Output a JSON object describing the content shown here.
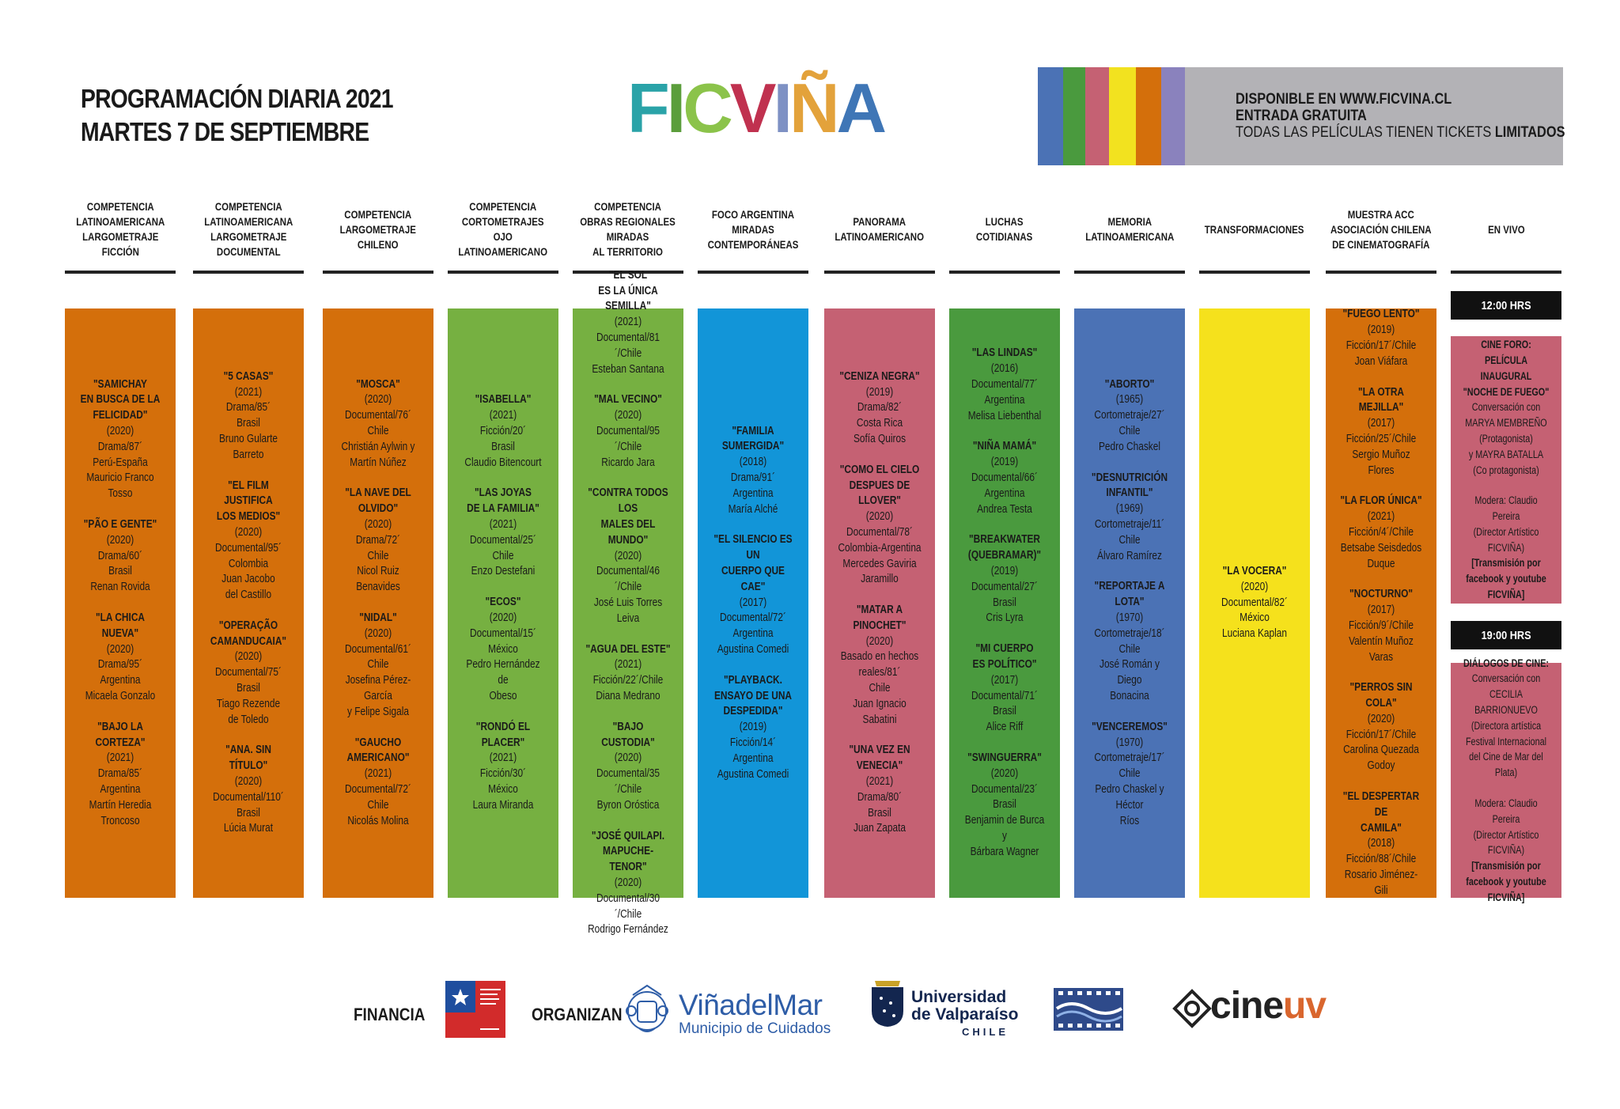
{
  "header": {
    "title": "PROGRAMACIÓN DIARIA 2021",
    "date": "MARTES 7 DE SEPTIEMBRE"
  },
  "logo": {
    "letters": [
      {
        "char": "F",
        "color": "#2aa3a8"
      },
      {
        "char": "I",
        "color": "#5b9e3b"
      },
      {
        "char": "C",
        "color": "#8bc34a"
      },
      {
        "char": "V",
        "color": "#c0314f"
      },
      {
        "char": "I",
        "color": "#7e91c4"
      },
      {
        "char": "Ñ",
        "color": "#e3a23b"
      },
      {
        "char": "A",
        "color": "#3f76b6"
      }
    ]
  },
  "banner": {
    "stripe_colors": [
      "#4b72b5",
      "#4a9a3e",
      "#c56173",
      "#f2e21f",
      "#d46f0b",
      "#8a82bd"
    ],
    "line1": "DISPONIBLE EN WWW.FICVINA.CL",
    "line2": "ENTRADA GRATUITA",
    "line3_prefix": "TODAS LAS PELÍCULAS TIENEN TICKETS ",
    "line3_strong": "LIMITADOS"
  },
  "columns": [
    {
      "header": "COMPETENCIA\nLATINOAMERICANA\nLARGOMETRAJE\nFICCIÓN",
      "color": "#d46f0b",
      "films": [
        {
          "title": "\"SAMICHAY\nEN BUSCA DE LA\nFELICIDAD\"",
          "details": "(2020)\nDrama/87´\nPerú-España\nMauricio Franco\nTosso"
        },
        {
          "title": "\"PÃO E GENTE\"",
          "details": "(2020)\nDrama/60´\nBrasil\nRenan Rovida"
        },
        {
          "title": "\"LA CHICA NUEVA\"",
          "details": "(2020)\nDrama/95´\nArgentina\nMicaela Gonzalo"
        },
        {
          "title": "\"BAJO LA CORTEZA\"",
          "details": "(2021)\nDrama/85´\nArgentina\nMartín Heredia\nTroncoso"
        }
      ]
    },
    {
      "header": "COMPETENCIA\nLATINOAMERICANA\nLARGOMETRAJE\nDOCUMENTAL",
      "color": "#d46f0b",
      "films": [
        {
          "title": "\"5 CASAS\"",
          "details": "(2021)\nDrama/85´\nBrasil\nBruno Gularte Barreto"
        },
        {
          "title": "\"EL FILM JUSTIFICA\nLOS MEDIOS\"",
          "details": "(2020)\nDocumental/95´\nColombia\nJuan Jacobo\ndel Castillo"
        },
        {
          "title": "\"OPERAÇÃO\nCAMANDUCAIA\"",
          "details": "(2020)\nDocumental/75´\nBrasil\nTiago Rezende\nde Toledo"
        },
        {
          "title": "\"ANA. SIN TÍTULO\"",
          "details": "(2020)\nDocumental/110´\nBrasil\nLúcia Murat"
        }
      ]
    },
    {
      "header": "COMPETENCIA\nLARGOMETRAJE\nCHILENO",
      "color": "#d46f0b",
      "films": [
        {
          "title": "\"MOSCA\"",
          "details": "(2020)\nDocumental/76´\nChile\nChristián Aylwin y\nMartín Núñez"
        },
        {
          "title": "\"LA NAVE DEL OLVIDO\"",
          "details": "(2020)\nDrama/72´\nChile\nNicol Ruiz\nBenavides"
        },
        {
          "title": "\"NIDAL\"",
          "details": "(2020)\nDocumental/61´\nChile\nJosefina Pérez-García\ny Felipe Sigala"
        },
        {
          "title": "\"GAUCHO\nAMERICANO\"",
          "details": "(2021)\nDocumental/72´\nChile\nNicolás Molina"
        }
      ]
    },
    {
      "header": "COMPETENCIA\nCORTOMETRAJES\nOJO\nLATINOAMERICANO",
      "color": "#76b041",
      "films": [
        {
          "title": "\"ISABELLA\"",
          "details": "(2021)\nFicción/20´\nBrasil\nClaudio Bitencourt"
        },
        {
          "title": "\"LAS JOYAS\nDE LA FAMILIA\"",
          "details": "(2021)\nDocumental/25´\nChile\nEnzo Destefani"
        },
        {
          "title": "\"ECOS\"",
          "details": "(2020)\nDocumental/15´\nMéxico\nPedro Hernández de\nObeso"
        },
        {
          "title": "\"RONDÓ EL PLACER\"",
          "details": "(2021)\nFicción/30´\nMéxico\nLaura Miranda"
        }
      ]
    },
    {
      "header": "COMPETENCIA\nOBRAS REGIONALES\nMIRADAS\nAL TERRITORIO",
      "color": "#76b041",
      "films": [
        {
          "title": "\"EL SOL\nES LA ÚNICA\nSEMILLA\"",
          "details": "(2021)\nDocumental/81´/Chile\nEsteban Santana"
        },
        {
          "title": "\"MAL VECINO\"",
          "details": "(2020)\nDocumental/95´/Chile\nRicardo Jara"
        },
        {
          "title": "\"CONTRA TODOS LOS\nMALES DEL MUNDO\"",
          "details": "(2020)\nDocumental/46´/Chile\nJosé Luis Torres Leiva"
        },
        {
          "title": "\"AGUA DEL ESTE\"",
          "details": "(2021)\nFicción/22´/Chile\nDiana Medrano"
        },
        {
          "title": "\"BAJO CUSTODIA\"",
          "details": "(2020)\nDocumental/35´/Chile\nByron Oróstica"
        },
        {
          "title": "\"JOSÉ QUILAPI.\nMAPUCHE-TENOR\"",
          "details": "(2020)\nDocumental/30´/Chile\nRodrigo Fernández"
        }
      ]
    },
    {
      "header": "FOCO ARGENTINA\nMIRADAS\nCONTEMPORÁNEAS",
      "color": "#1295d8",
      "films": [
        {
          "title": "\"FAMILIA\nSUMERGIDA\"",
          "details": "(2018)\nDrama/91´\nArgentina\nMaría Alché"
        },
        {
          "title": "\"EL SILENCIO ES UN\nCUERPO QUE CAE\"",
          "details": "(2017)\nDocumental/72´\nArgentina\nAgustina Comedi"
        },
        {
          "title": "\"PLAYBACK.\nENSAYO DE UNA\nDESPEDIDA\"",
          "details": "(2019)\nFicción/14´\nArgentina\nAgustina Comedi"
        }
      ]
    },
    {
      "header": "PANORAMA\nLATINOAMERICANO",
      "color": "#c56173",
      "films": [
        {
          "title": "\"CENIZA NEGRA\"",
          "details": "(2019)\nDrama/82´\nCosta Rica\nSofía Quiros"
        },
        {
          "title": "\"COMO EL CIELO\nDESPUES DE LLOVER\"",
          "details": "(2020)\nDocumental/78´\nColombia-Argentina\nMercedes Gaviria\nJaramillo"
        },
        {
          "title": "\"MATAR A PINOCHET\"",
          "details": "(2020)\nBasado en hechos\nreales/81´\nChile\nJuan Ignacio Sabatini"
        },
        {
          "title": "\"UNA VEZ EN VENECIA\"",
          "details": "(2021)\nDrama/80´\nBrasil\nJuan Zapata"
        }
      ]
    },
    {
      "header": "LUCHAS\nCOTIDIANAS",
      "color": "#4a9a3e",
      "films": [
        {
          "title": "\"LAS LINDAS\"",
          "details": "(2016)\nDocumental/77´\nArgentina\nMelisa Liebenthal"
        },
        {
          "title": "\"NIÑA MAMÁ\"",
          "details": "(2019)\nDocumental/66´\nArgentina\nAndrea Testa"
        },
        {
          "title": "\"BREAKWATER\n(QUEBRAMAR)\"",
          "details": "(2019)\nDocumental/27´\nBrasil\nCris Lyra"
        },
        {
          "title": "\"MI CUERPO\nES POLÍTICO\"",
          "details": "(2017)\nDocumental/71´\nBrasil\nAlice Riff"
        },
        {
          "title": "\"SWINGUERRA\"",
          "details": "(2020)\nDocumental/23´\nBrasil\nBenjamin de Burca y\nBárbara Wagner"
        }
      ]
    },
    {
      "header": "MEMORIA\nLATINOAMERICANA",
      "color": "#4b72b5",
      "films": [
        {
          "title": "\"ABORTO\"",
          "details": "(1965)\nCortometraje/27´\nChile\nPedro Chaskel"
        },
        {
          "title": "\"DESNUTRICIÓN\nINFANTIL\"",
          "details": "(1969)\nCortometraje/11´\nChile\nÁlvaro Ramírez"
        },
        {
          "title": "\"REPORTAJE A LOTA\"",
          "details": "(1970)\nCortometraje/18´\nChile\nJosé Román y Diego\nBonacina"
        },
        {
          "title": "\"VENCEREMOS\"",
          "details": "(1970)\nCortometraje/17´\nChile\nPedro Chaskel y Héctor\nRíos"
        }
      ]
    },
    {
      "header": "TRANSFORMACIONES",
      "color": "#f5e11c",
      "films": [
        {
          "title": "\"LA VOCERA\"",
          "details": "(2020)\nDocumental/82´\nMéxico\nLuciana Kaplan"
        }
      ]
    },
    {
      "header": "MUESTRA ACC\nASOCIACIÓN CHILENA\nDE CINEMATOGRAFÍA",
      "color": "#d46f0b",
      "films": [
        {
          "title": "\"FUEGO LENTO\"",
          "details": "(2019)\nFicción/17´/Chile\nJoan Viáfara"
        },
        {
          "title": "\"LA OTRA MEJILLA\"",
          "details": "(2017)\nFicción/25´/Chile\nSergio Muñoz Flores"
        },
        {
          "title": "\"LA FLOR ÚNICA\"",
          "details": "(2021)\nFicción/4´/Chile\nBetsabe Seisdedos\nDuque"
        },
        {
          "title": "\"NOCTURNO\"",
          "details": "(2017)\nFicción/9´/Chile\nValentín Muñoz Varas"
        },
        {
          "title": "\"PERROS SIN COLA\"",
          "details": "(2020)\nFicción/17´/Chile\nCarolina Quezada\nGodoy"
        },
        {
          "title": "\"EL DESPERTAR DE\nCAMILA\"",
          "details": "(2018)\nFicción/88´/Chile\nRosario Jiménez-Gili"
        }
      ]
    }
  ],
  "en_vivo": {
    "header": "EN VIVO",
    "color": "#c56173",
    "sessions": [
      {
        "time": "12:00 HRS",
        "title": "CINE FORO: PELÍCULA\nINAUGURAL\n\"NOCHE DE FUEGO\"",
        "body": "Conversación con\nMARYA MEMBREÑO\n(Protagonista)\ny MAYRA BATALLA\n(Co protagonista)",
        "moderator": "Modera: Claudio Pereira\n(Director Artístico\nFICVIÑA)",
        "stream": "[Transmisión por\nfacebook y youtube\nFICVIÑA]"
      },
      {
        "time": "19:00 HRS",
        "title": "DIÁLOGOS DE CINE:",
        "body": "Conversación con\nCECILIA BARRIONUEVO\n(Directora artística\nFestival Internacional\ndel Cine de Mar del\nPlata)",
        "moderator": "Modera: Claudio Pereira\n(Director Artístico\nFICVIÑA)",
        "stream": "[Transmisión por\nfacebook y youtube\nFICVIÑA]"
      }
    ]
  },
  "footer": {
    "financia_label": "FINANCIA",
    "organizan_label": "ORGANIZAN",
    "vina_name_a": "Viña",
    "vina_name_b": "del",
    "vina_name_c": "Mar",
    "vina_sub": "Municipio de Cuidados",
    "uv_line1": "Universidad",
    "uv_line2": "de Valparaíso",
    "uv_chile": "CHILE",
    "cine_a": "cine",
    "cine_b": "uv"
  }
}
